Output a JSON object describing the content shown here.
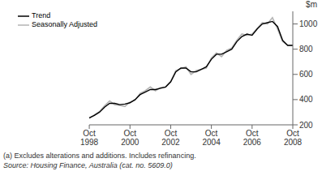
{
  "chart_data": {
    "type": "line",
    "y_label": "$m",
    "annotations": [
      "(a) Excludes alterations and additions. Includes refinancing.",
      "Source: Housing Finance, Australia (cat. no. 5609.0)"
    ],
    "categories": [
      "Oct 1998",
      null,
      null,
      null,
      null,
      null,
      null,
      null,
      "Oct 2000",
      null,
      null,
      null,
      null,
      null,
      null,
      null,
      "Oct 2002",
      null,
      null,
      null,
      null,
      null,
      null,
      null,
      "Oct 2004",
      null,
      null,
      null,
      null,
      null,
      null,
      null,
      "Oct 2006",
      null,
      null,
      null,
      null,
      null,
      null,
      null,
      "Oct 2008"
    ],
    "series": [
      {
        "name": "Trend",
        "color": "#000000",
        "values": [
          255,
          275,
          300,
          340,
          370,
          370,
          360,
          365,
          375,
          400,
          440,
          460,
          480,
          480,
          490,
          500,
          540,
          620,
          650,
          650,
          620,
          620,
          640,
          660,
          720,
          760,
          760,
          780,
          800,
          860,
          900,
          920,
          910,
          960,
          1000,
          1010,
          1020,
          980,
          870,
          830,
          830
        ]
      },
      {
        "name": "Seasonally Adjusted",
        "color": "#b4b4b4",
        "values": [
          250,
          280,
          305,
          350,
          390,
          360,
          355,
          345,
          380,
          395,
          450,
          470,
          500,
          470,
          495,
          500,
          545,
          630,
          645,
          660,
          600,
          630,
          640,
          650,
          730,
          770,
          740,
          790,
          810,
          870,
          920,
          910,
          920,
          965,
          1010,
          1000,
          1050,
          960,
          860,
          830,
          830
        ]
      }
    ],
    "ylim": [
      200,
      1100
    ],
    "yticks": [
      200,
      400,
      600,
      800,
      1000
    ],
    "grid": false,
    "legend": "top-left"
  }
}
